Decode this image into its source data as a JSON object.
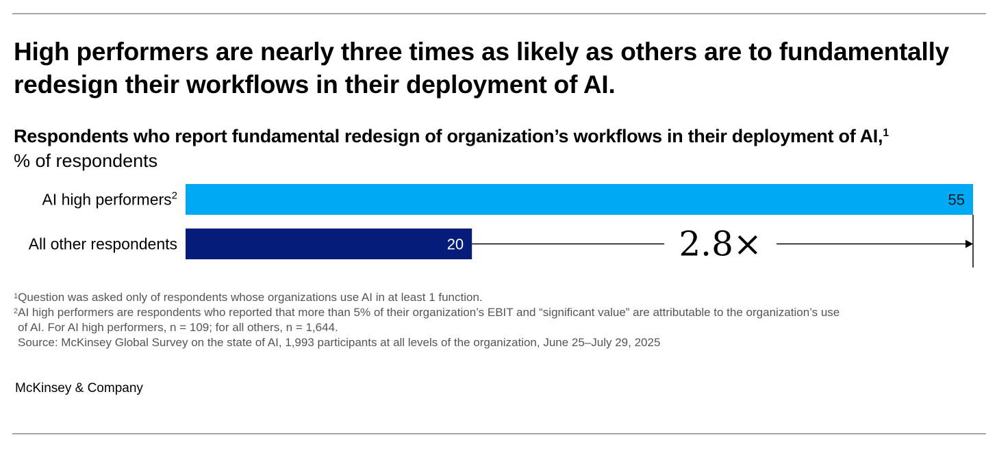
{
  "headline": "High performers are nearly three times as likely as others are to fundamentally redesign their workflows in their deployment of AI.",
  "chart_data": {
    "type": "bar",
    "orientation": "horizontal",
    "title": "Respondents who report fundamental redesign of organization’s workflows in their deployment of AI,",
    "title_footnote": "1",
    "unit_label": "% of respondents",
    "categories": [
      {
        "label": "AI high performers",
        "footnote": "2"
      },
      {
        "label": "All other respondents",
        "footnote": ""
      }
    ],
    "values": [
      55,
      20
    ],
    "value_labels": [
      "55",
      "20"
    ],
    "xlim": [
      0,
      55
    ],
    "annotation": "2.8×",
    "colors": [
      "#00a9f4",
      "#051c7a"
    ]
  },
  "footnotes": {
    "note1_marker": "1",
    "note1": "Question was asked only of respondents whose organizations use AI in at least 1 function.",
    "note2_marker": "2",
    "note2_line1": "AI high performers are respondents who reported that more than 5% of their organization’s EBIT and “significant value” are attributable to the organization’s use",
    "note2_line2": "of AI. For AI high performers, n = 109; for all others, n = 1,644.",
    "source": "Source: McKinsey Global Survey on the state of AI, 1,993 participants at all levels of the organization, June 25–July 29, 2025"
  },
  "brand": "McKinsey & Company"
}
